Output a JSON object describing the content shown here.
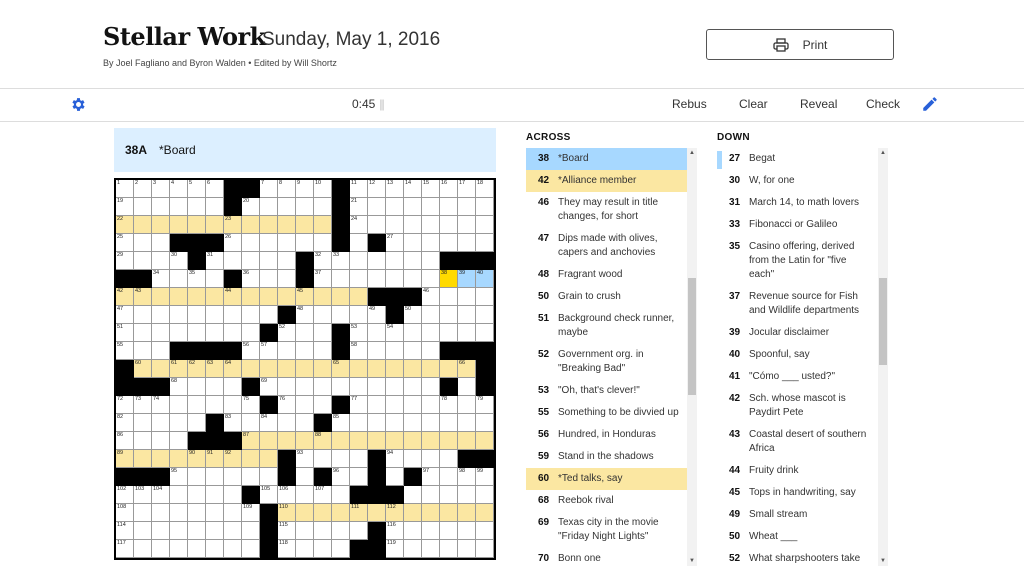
{
  "header": {
    "title": "Stellar Work",
    "date": "Sunday, May 1, 2016",
    "byline": "By Joel Fagliano and Byron Walden  •  Edited by Will Shortz",
    "print_label": "Print"
  },
  "toolbar": {
    "timer": "0:45",
    "pause": "||",
    "rebus": "Rebus",
    "clear": "Clear",
    "reveal": "Reveal",
    "check": "Check",
    "settings_icon": "gear-icon",
    "pencil_icon": "pencil-icon",
    "accent": "#2860d8"
  },
  "current_clue": {
    "label": "38A",
    "text": "*Board"
  },
  "colors": {
    "selected_cell": "#ffda00",
    "selected_word": "#a7d8ff",
    "highlight": "#fbe7a2",
    "clue_bar": "#dcefff"
  },
  "grid": {
    "rows": [
      "......##....#........",
      "......#.....#........",
      "............#........",
      "...###......#.#......",
      "....#.....#.......###",
      "##....#...#..........",
      "..............###....",
      ".........#.....#.....",
      "........#...#........",
      "...####.....#.....###",
      "#...................#",
      "###....#..........#.#",
      "........#...#........",
      ".....#.....#.........",
      "....###..............",
      ".........#....#....##",
      "###......#.#..#.#....",
      ".......#.....###.....",
      "........#............",
      "........#.....#......",
      "........#....##......"
    ],
    "numbers": [
      [
        1,
        2,
        3,
        4,
        5,
        6,
        7,
        8,
        9,
        10,
        11,
        12,
        13,
        14,
        15,
        16,
        17,
        18
      ],
      [
        19,
        20,
        21
      ],
      [
        22,
        23,
        24
      ],
      [
        25,
        26,
        27,
        28
      ],
      [
        29,
        30,
        31,
        32,
        33
      ],
      [
        34,
        35,
        36,
        37,
        38,
        39,
        40,
        41
      ],
      [
        42,
        43,
        44,
        45,
        46
      ],
      [
        47,
        48,
        49,
        50
      ],
      [
        51,
        52,
        53,
        54
      ],
      [
        55,
        56,
        57,
        58,
        59
      ],
      [
        60,
        61,
        62,
        63,
        64,
        65,
        66,
        67
      ],
      [
        68,
        69,
        70,
        71
      ],
      [
        72,
        73,
        74,
        75,
        76,
        77,
        78,
        79,
        80,
        81
      ],
      [
        82,
        83,
        84,
        85
      ],
      [
        86,
        87,
        88
      ],
      [
        89,
        90,
        91,
        92,
        93,
        94
      ],
      [
        95,
        96,
        97,
        98,
        99,
        100,
        101
      ],
      [
        102,
        103,
        104,
        105,
        106,
        107
      ],
      [
        108,
        109,
        110,
        111,
        112,
        113
      ],
      [
        114,
        115,
        116
      ],
      [
        117,
        118,
        119
      ]
    ],
    "highlighted_entries": [
      "22A",
      "42A",
      "60A",
      "87A",
      "89A",
      "110A"
    ],
    "selected_entry": "38A",
    "selected_cell": "38"
  },
  "across": {
    "heading": "ACROSS",
    "clues": [
      {
        "num": "38",
        "text": "*Board",
        "state": "selected"
      },
      {
        "num": "42",
        "text": "*Alliance member",
        "state": "highlight"
      },
      {
        "num": "46",
        "text": "They may result in title changes, for short"
      },
      {
        "num": "47",
        "text": "Dips made with olives, capers and anchovies"
      },
      {
        "num": "48",
        "text": "Fragrant wood"
      },
      {
        "num": "50",
        "text": "Grain to crush"
      },
      {
        "num": "51",
        "text": "Background check runner, maybe"
      },
      {
        "num": "52",
        "text": "Government org. in \"Breaking Bad\""
      },
      {
        "num": "53",
        "text": "\"Oh, that's clever!\""
      },
      {
        "num": "55",
        "text": "Something to be divvied up"
      },
      {
        "num": "56",
        "text": "Hundred, in Honduras"
      },
      {
        "num": "59",
        "text": "Stand in the shadows"
      },
      {
        "num": "60",
        "text": "*Ted talks, say",
        "state": "highlight"
      },
      {
        "num": "68",
        "text": "Reebok rival"
      },
      {
        "num": "69",
        "text": "Texas city in the movie \"Friday Night Lights\""
      },
      {
        "num": "70",
        "text": "Bonn one"
      }
    ]
  },
  "down": {
    "heading": "DOWN",
    "clues": [
      {
        "num": "27",
        "text": "Begat",
        "state": "crossing"
      },
      {
        "num": "30",
        "text": "W, for one"
      },
      {
        "num": "31",
        "text": "March 14, to math lovers"
      },
      {
        "num": "33",
        "text": "Fibonacci or Galileo"
      },
      {
        "num": "35",
        "text": "Casino offering, derived from the Latin for \"five each\""
      },
      {
        "num": "37",
        "text": "Revenue source for Fish and Wildlife departments"
      },
      {
        "num": "39",
        "text": "Jocular disclaimer"
      },
      {
        "num": "40",
        "text": "Spoonful, say"
      },
      {
        "num": "41",
        "text": "\"Cómo ___ usted?\""
      },
      {
        "num": "42",
        "text": "Sch. whose mascot is Paydirt Pete"
      },
      {
        "num": "43",
        "text": "Coastal desert of southern Africa"
      },
      {
        "num": "44",
        "text": "Fruity drink"
      },
      {
        "num": "45",
        "text": "Tops in handwriting, say"
      },
      {
        "num": "49",
        "text": "Small stream"
      },
      {
        "num": "50",
        "text": "Wheat ___"
      },
      {
        "num": "52",
        "text": "What sharpshooters take"
      },
      {
        "num": "54",
        "text": "Prompt"
      }
    ]
  }
}
